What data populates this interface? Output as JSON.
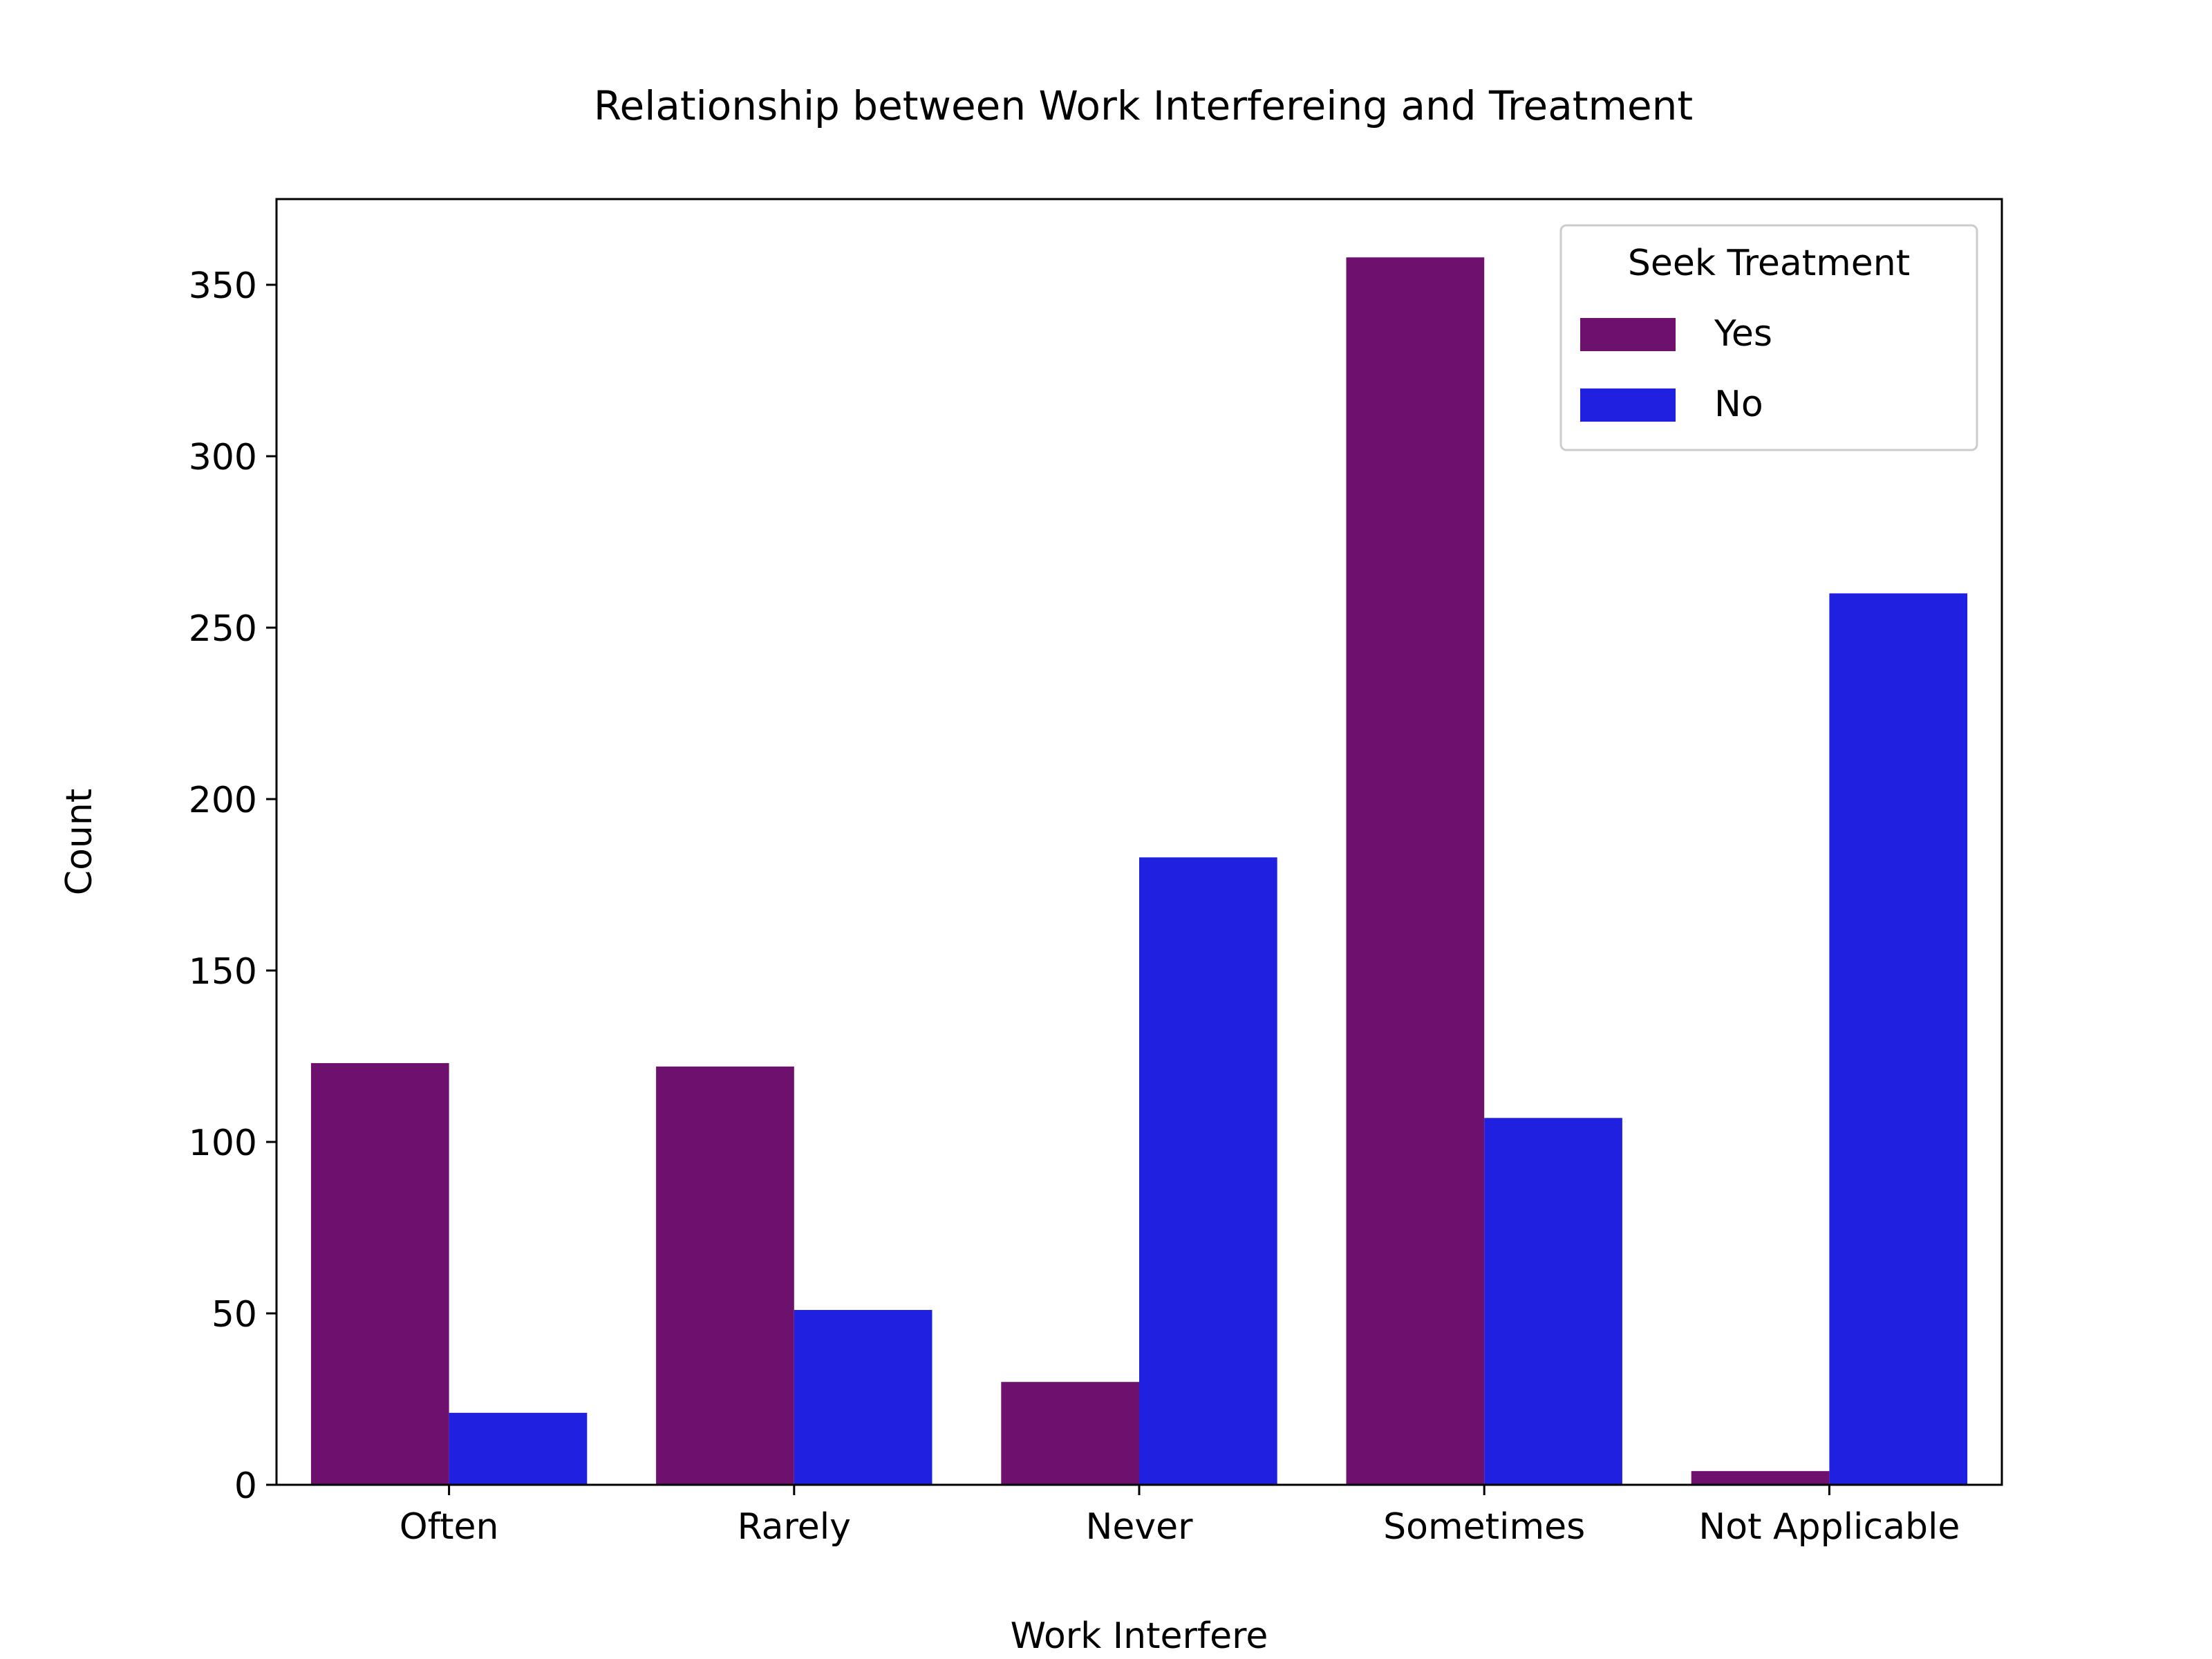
{
  "chart_data": {
    "type": "bar",
    "title": "Relationship between Work Interfereing and Treatment",
    "xlabel": "Work Interfere",
    "ylabel": "Count",
    "categories": [
      "Often",
      "Rarely",
      "Never",
      "Sometimes",
      "Not Applicable"
    ],
    "series": [
      {
        "name": "Yes",
        "color": "#6e106e",
        "values": [
          123,
          122,
          30,
          358,
          4
        ]
      },
      {
        "name": "No",
        "color": "#2020e0",
        "values": [
          21,
          51,
          183,
          107,
          260
        ]
      }
    ],
    "ylim": [
      0,
      375
    ],
    "yticks": [
      0,
      50,
      100,
      150,
      200,
      250,
      300,
      350
    ],
    "legend": {
      "title": "Seek Treatment",
      "position": "top-right"
    },
    "grid": false
  }
}
